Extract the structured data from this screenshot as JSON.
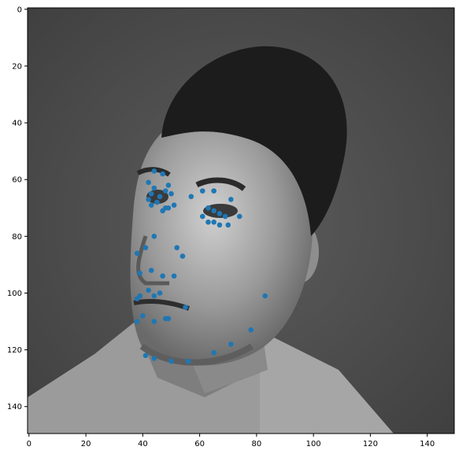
{
  "chart_data": {
    "type": "scatter",
    "title": "",
    "xlabel": "",
    "ylabel": "",
    "xlim": [
      -0.5,
      149.5
    ],
    "ylim": [
      149.5,
      -0.5
    ],
    "y_inverted": true,
    "grid": false,
    "background_image": "grayscale-face-photo",
    "x_ticks": [
      0,
      20,
      40,
      60,
      80,
      100,
      120,
      140
    ],
    "y_ticks": [
      0,
      20,
      40,
      60,
      80,
      100,
      120,
      140
    ],
    "marker_color": "#1f77b4",
    "series": [
      {
        "x": [
          44,
          47,
          42,
          49,
          44,
          48,
          43,
          46,
          42,
          50,
          45,
          43,
          48,
          49,
          47,
          51,
          61,
          65,
          71,
          57,
          63,
          65,
          67,
          69,
          61,
          63,
          65,
          67,
          70,
          74,
          44,
          38,
          41,
          52,
          54,
          39,
          43,
          47,
          51,
          38,
          39,
          42,
          44,
          46,
          55,
          83,
          40,
          44,
          48,
          49,
          38,
          41,
          44,
          50,
          56,
          65,
          71,
          78
        ],
        "y": [
          57,
          58,
          61,
          62,
          63,
          64,
          65,
          66,
          67,
          65,
          68,
          69,
          70,
          70,
          71,
          69,
          64,
          64,
          67,
          66,
          70,
          71,
          72,
          73,
          73,
          75,
          75,
          76,
          76,
          73,
          80,
          86,
          84,
          84,
          87,
          93,
          92,
          94,
          94,
          102,
          101,
          99,
          101,
          100,
          105,
          101,
          108,
          110,
          109,
          109,
          110,
          122,
          123,
          124,
          124,
          121,
          118,
          113
        ]
      }
    ]
  }
}
